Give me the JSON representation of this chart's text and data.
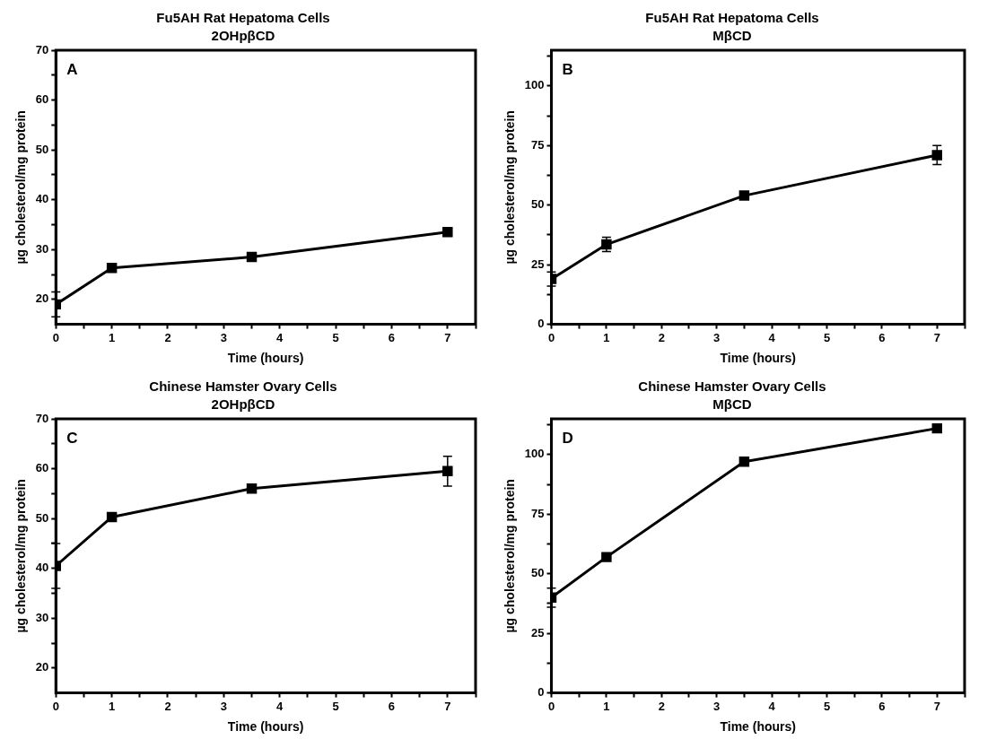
{
  "chart_data": [
    {
      "type": "line",
      "title": "Fu5AH Rat Hepatoma Cells",
      "subtitle": "2OHpβCD",
      "xlabel": "Time (hours)",
      "ylabel": "µg cholesterol/mg protein",
      "annotations": [
        "A"
      ],
      "x": [
        0,
        1,
        3.5,
        7
      ],
      "values": [
        19,
        26.3,
        28.5,
        33.5
      ],
      "errors": [
        2.5,
        null,
        null,
        null
      ],
      "color": "#000000",
      "marker": "square",
      "line_style": "solid",
      "grid": false,
      "legend": false,
      "xlim": [
        0,
        7.5
      ],
      "ylim": [
        15,
        70
      ],
      "xticks": [
        0,
        {
          "value": 0.5,
          "label": null
        },
        1,
        {
          "value": 1.5,
          "label": null
        },
        2,
        {
          "value": 2.5,
          "label": null
        },
        3,
        {
          "value": 3.5,
          "label": null
        },
        4,
        {
          "value": 4.5,
          "label": null
        },
        5,
        {
          "value": 5.5,
          "label": null
        },
        6,
        {
          "value": 6.5,
          "label": null
        },
        7,
        {
          "value": 7.5,
          "label": null
        }
      ],
      "yticks": [
        20,
        {
          "value": 25,
          "label": null
        },
        30,
        {
          "value": 35,
          "label": null
        },
        40,
        {
          "value": 45,
          "label": null
        },
        50,
        {
          "value": 55,
          "label": null
        },
        60,
        {
          "value": 65,
          "label": null
        },
        70
      ]
    },
    {
      "type": "line",
      "title": "Fu5AH Rat Hepatoma Cells",
      "subtitle": "MβCD",
      "xlabel": "Time (hours)",
      "ylabel": "µg cholesterol/mg protein",
      "annotations": [
        "B"
      ],
      "x": [
        0,
        1,
        3.5,
        7
      ],
      "values": [
        19,
        33.5,
        54,
        71
      ],
      "errors": [
        3,
        3,
        null,
        4
      ],
      "color": "#000000",
      "marker": "square",
      "line_style": "solid",
      "grid": false,
      "legend": false,
      "xlim": [
        0,
        7.5
      ],
      "ylim": [
        0,
        115
      ],
      "xticks": [
        0,
        {
          "value": 0.5,
          "label": null
        },
        1,
        {
          "value": 1.5,
          "label": null
        },
        2,
        {
          "value": 2.5,
          "label": null
        },
        3,
        {
          "value": 3.5,
          "label": null
        },
        4,
        {
          "value": 4.5,
          "label": null
        },
        5,
        {
          "value": 5.5,
          "label": null
        },
        6,
        {
          "value": 6.5,
          "label": null
        },
        7,
        {
          "value": 7.5,
          "label": null
        }
      ],
      "yticks": [
        0,
        {
          "value": 12.5,
          "label": null
        },
        25,
        {
          "value": 37.5,
          "label": null
        },
        50,
        {
          "value": 62.5,
          "label": null
        },
        75,
        {
          "value": 87.5,
          "label": null
        },
        100,
        {
          "value": 112.5,
          "label": null
        }
      ]
    },
    {
      "type": "line",
      "title": "Chinese Hamster Ovary Cells",
      "subtitle": "2OHpβCD",
      "xlabel": "Time (hours)",
      "ylabel": "µg cholesterol/mg protein",
      "annotations": [
        "C"
      ],
      "x": [
        0,
        1,
        3.5,
        7
      ],
      "values": [
        40.5,
        50.3,
        56,
        59.5
      ],
      "errors": [
        4.5,
        null,
        null,
        3
      ],
      "color": "#000000",
      "marker": "square",
      "line_style": "solid",
      "grid": false,
      "legend": false,
      "xlim": [
        0,
        7.5
      ],
      "ylim": [
        15,
        70
      ],
      "xticks": [
        0,
        {
          "value": 0.5,
          "label": null
        },
        1,
        {
          "value": 1.5,
          "label": null
        },
        2,
        {
          "value": 2.5,
          "label": null
        },
        3,
        {
          "value": 3.5,
          "label": null
        },
        4,
        {
          "value": 4.5,
          "label": null
        },
        5,
        {
          "value": 5.5,
          "label": null
        },
        6,
        {
          "value": 6.5,
          "label": null
        },
        7,
        {
          "value": 7.5,
          "label": null
        }
      ],
      "yticks": [
        20,
        {
          "value": 25,
          "label": null
        },
        30,
        {
          "value": 35,
          "label": null
        },
        40,
        {
          "value": 45,
          "label": null
        },
        50,
        {
          "value": 55,
          "label": null
        },
        60,
        {
          "value": 65,
          "label": null
        },
        70
      ]
    },
    {
      "type": "line",
      "title": "Chinese Hamster Ovary Cells",
      "subtitle": "MβCD",
      "xlabel": "Time (hours)",
      "ylabel": "µg cholesterol/mg protein",
      "annotations": [
        "D"
      ],
      "x": [
        0,
        1,
        3.5,
        7
      ],
      "values": [
        40,
        57,
        97,
        111
      ],
      "errors": [
        4,
        null,
        null,
        null
      ],
      "color": "#000000",
      "marker": "square",
      "line_style": "solid",
      "grid": false,
      "legend": false,
      "xlim": [
        0,
        7.5
      ],
      "ylim": [
        0,
        115
      ],
      "xticks": [
        0,
        {
          "value": 0.5,
          "label": null
        },
        1,
        {
          "value": 1.5,
          "label": null
        },
        2,
        {
          "value": 2.5,
          "label": null
        },
        3,
        {
          "value": 3.5,
          "label": null
        },
        4,
        {
          "value": 4.5,
          "label": null
        },
        5,
        {
          "value": 5.5,
          "label": null
        },
        6,
        {
          "value": 6.5,
          "label": null
        },
        7,
        {
          "value": 7.5,
          "label": null
        }
      ],
      "yticks": [
        0,
        {
          "value": 12.5,
          "label": null
        },
        25,
        {
          "value": 37.5,
          "label": null
        },
        50,
        {
          "value": 62.5,
          "label": null
        },
        75,
        {
          "value": 87.5,
          "label": null
        },
        100,
        {
          "value": 112.5,
          "label": null
        }
      ]
    }
  ]
}
